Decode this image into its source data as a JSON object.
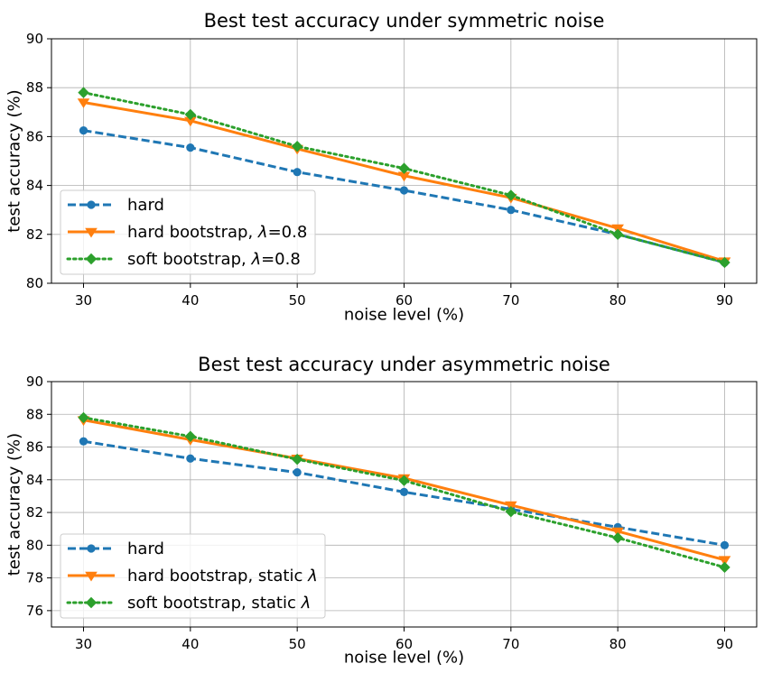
{
  "chart_data": [
    {
      "type": "line",
      "title": "Best test accuracy under symmetric noise",
      "xlabel": "noise level (%)",
      "ylabel": "test accuracy (%)",
      "x": [
        30,
        40,
        50,
        60,
        70,
        80,
        90
      ],
      "xticks": [
        "30",
        "40",
        "50",
        "60",
        "70",
        "80",
        "90"
      ],
      "xlim": [
        27,
        93
      ],
      "ylim": [
        80,
        90
      ],
      "yticks": [
        "80",
        "82",
        "84",
        "86",
        "88",
        "90"
      ],
      "grid": true,
      "legend_position": "lower-left",
      "series": [
        {
          "name": "hard",
          "label_prefix": "hard",
          "label_suffix": "",
          "color": "#1f77b4",
          "linestyle": "dashed",
          "marker": "circle",
          "values": [
            86.25,
            85.55,
            84.55,
            83.8,
            83.0,
            82.0,
            80.85
          ]
        },
        {
          "name": "hard bootstrap, λ=0.8",
          "label_prefix": "hard bootstrap, ",
          "label_suffix": "=0.8",
          "color": "#ff7f0e",
          "linestyle": "solid",
          "marker": "triangle-down",
          "values": [
            87.4,
            86.65,
            85.5,
            84.4,
            83.5,
            82.25,
            80.9
          ]
        },
        {
          "name": "soft bootstrap, λ=0.8",
          "label_prefix": "soft bootstrap, ",
          "label_suffix": "=0.8",
          "color": "#2ca02c",
          "linestyle": "dotted",
          "marker": "diamond",
          "values": [
            87.8,
            86.9,
            85.6,
            84.7,
            83.6,
            82.0,
            80.85
          ]
        }
      ]
    },
    {
      "type": "line",
      "title": "Best test accuracy under asymmetric noise",
      "xlabel": "noise level (%)",
      "ylabel": "test accuracy (%)",
      "x": [
        30,
        40,
        50,
        60,
        70,
        80,
        90
      ],
      "xticks": [
        "30",
        "40",
        "50",
        "60",
        "70",
        "80",
        "90"
      ],
      "xlim": [
        27,
        93
      ],
      "ylim": [
        75,
        90
      ],
      "yticks": [
        "76",
        "78",
        "80",
        "82",
        "84",
        "86",
        "88",
        "90"
      ],
      "grid": true,
      "legend_position": "lower-left",
      "series": [
        {
          "name": "hard",
          "label_prefix": "hard",
          "label_suffix": "",
          "color": "#1f77b4",
          "linestyle": "dashed",
          "marker": "circle",
          "values": [
            86.35,
            85.3,
            84.45,
            83.25,
            82.2,
            81.1,
            80.0
          ]
        },
        {
          "name": "hard bootstrap, static λ",
          "label_prefix": "hard bootstrap, static ",
          "label_suffix": "",
          "color": "#ff7f0e",
          "linestyle": "solid",
          "marker": "triangle-down",
          "values": [
            87.65,
            86.45,
            85.3,
            84.1,
            82.45,
            80.85,
            79.1
          ]
        },
        {
          "name": "soft bootstrap, static λ",
          "label_prefix": "soft bootstrap, static ",
          "label_suffix": "",
          "color": "#2ca02c",
          "linestyle": "dotted",
          "marker": "diamond",
          "values": [
            87.8,
            86.65,
            85.25,
            83.95,
            82.05,
            80.45,
            78.65
          ]
        }
      ]
    }
  ]
}
